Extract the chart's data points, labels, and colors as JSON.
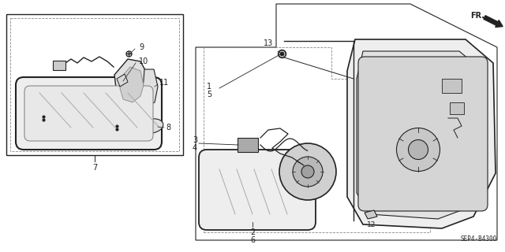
{
  "bg_color": "#ffffff",
  "diagram_code": "SEP4-B4300",
  "line_color": "#222222",
  "gray": "#888888",
  "light_gray": "#d8d8d8",
  "lighter_gray": "#eeeeee"
}
